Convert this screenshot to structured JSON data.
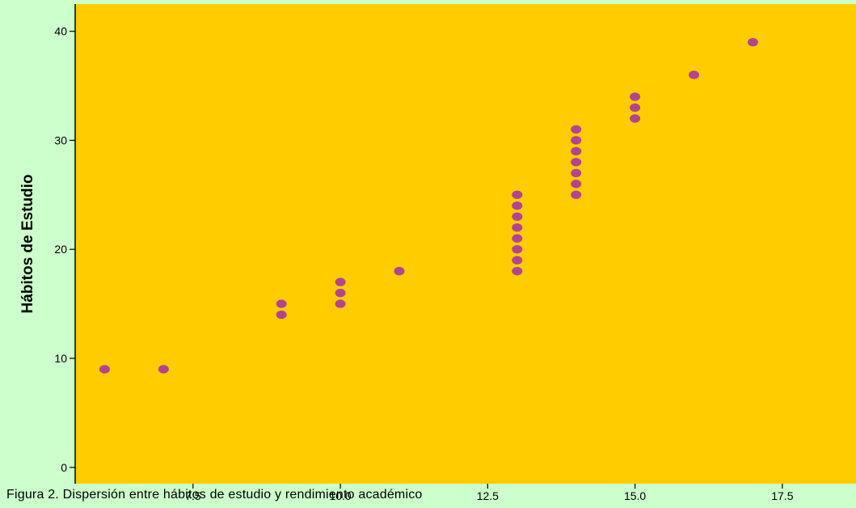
{
  "chart_data": {
    "type": "scatter",
    "title": "",
    "xlabel": "",
    "ylabel": "Hábitos de Estudio",
    "xlim": [
      5.5,
      18.75
    ],
    "ylim": [
      -1.5,
      42.5
    ],
    "x_ticks": [
      "7.5",
      "10.0",
      "12.5",
      "15.0",
      "17.5"
    ],
    "x_tick_values": [
      7.5,
      10.0,
      12.5,
      15.0,
      17.5
    ],
    "y_ticks": [
      "0",
      "10",
      "20",
      "30",
      "40"
    ],
    "y_tick_values": [
      0,
      10,
      20,
      30,
      40
    ],
    "grid": false,
    "points": [
      {
        "x": 6,
        "y": 9
      },
      {
        "x": 7,
        "y": 9
      },
      {
        "x": 9,
        "y": 14
      },
      {
        "x": 9,
        "y": 15
      },
      {
        "x": 10,
        "y": 15
      },
      {
        "x": 10,
        "y": 16
      },
      {
        "x": 10,
        "y": 17
      },
      {
        "x": 11,
        "y": 18
      },
      {
        "x": 13,
        "y": 18
      },
      {
        "x": 13,
        "y": 19
      },
      {
        "x": 13,
        "y": 20
      },
      {
        "x": 13,
        "y": 21
      },
      {
        "x": 13,
        "y": 22
      },
      {
        "x": 13,
        "y": 23
      },
      {
        "x": 13,
        "y": 24
      },
      {
        "x": 13,
        "y": 25
      },
      {
        "x": 14,
        "y": 25
      },
      {
        "x": 14,
        "y": 26
      },
      {
        "x": 14,
        "y": 27
      },
      {
        "x": 14,
        "y": 28
      },
      {
        "x": 14,
        "y": 29
      },
      {
        "x": 14,
        "y": 30
      },
      {
        "x": 14,
        "y": 31
      },
      {
        "x": 15,
        "y": 32
      },
      {
        "x": 15,
        "y": 33
      },
      {
        "x": 15,
        "y": 34
      },
      {
        "x": 16,
        "y": 36
      },
      {
        "x": 17,
        "y": 39
      }
    ],
    "colors": {
      "plot_background": "#ffcc00",
      "page_background": "#ccffcc",
      "marker": "#b5448f",
      "axis": "#000000"
    }
  },
  "caption": "Figura 2. Dispersión entre hábitos de estudio y rendimiento académico"
}
